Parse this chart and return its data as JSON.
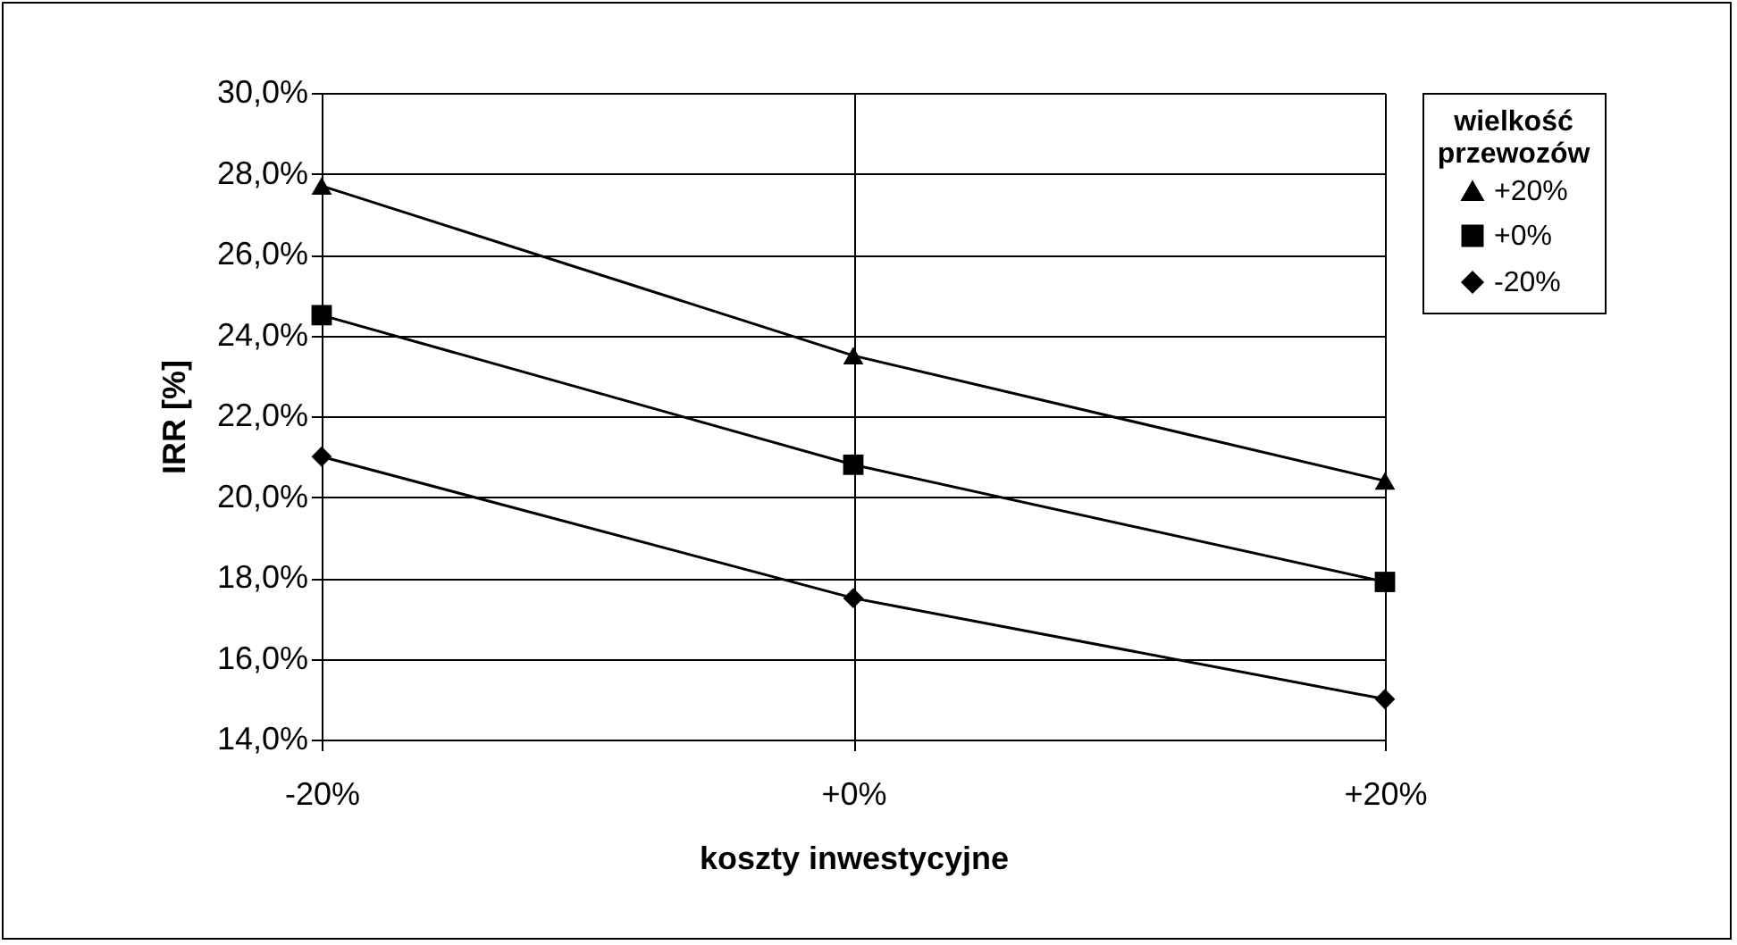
{
  "chart_data": {
    "type": "line",
    "xlabel": "koszty inwestycyjne",
    "ylabel": "IRR [%]",
    "legend_title": "wielkość przewozów",
    "categories": [
      "-20%",
      "+0%",
      "+20%"
    ],
    "series": [
      {
        "name": "+20%",
        "color": "#000000",
        "marker": "triangle",
        "values": [
          27.7,
          23.5,
          20.4
        ]
      },
      {
        "name": "+0%",
        "color": "#000000",
        "marker": "square",
        "values": [
          24.5,
          20.8,
          17.9
        ]
      },
      {
        "name": "-20%",
        "color": "#000000",
        "marker": "diamond",
        "values": [
          21.0,
          17.5,
          15.0
        ]
      }
    ],
    "ylim": [
      14,
      30
    ],
    "yticks": [
      {
        "value": 14,
        "label": "14,0%"
      },
      {
        "value": 16,
        "label": "16,0%"
      },
      {
        "value": 18,
        "label": "18,0%"
      },
      {
        "value": 20,
        "label": "20,0%"
      },
      {
        "value": 22,
        "label": "22,0%"
      },
      {
        "value": 24,
        "label": "24,0%"
      },
      {
        "value": 26,
        "label": "26,0%"
      },
      {
        "value": 28,
        "label": "28,0%"
      },
      {
        "value": 30,
        "label": "30,0%"
      }
    ],
    "grid": true,
    "legend": "right"
  }
}
